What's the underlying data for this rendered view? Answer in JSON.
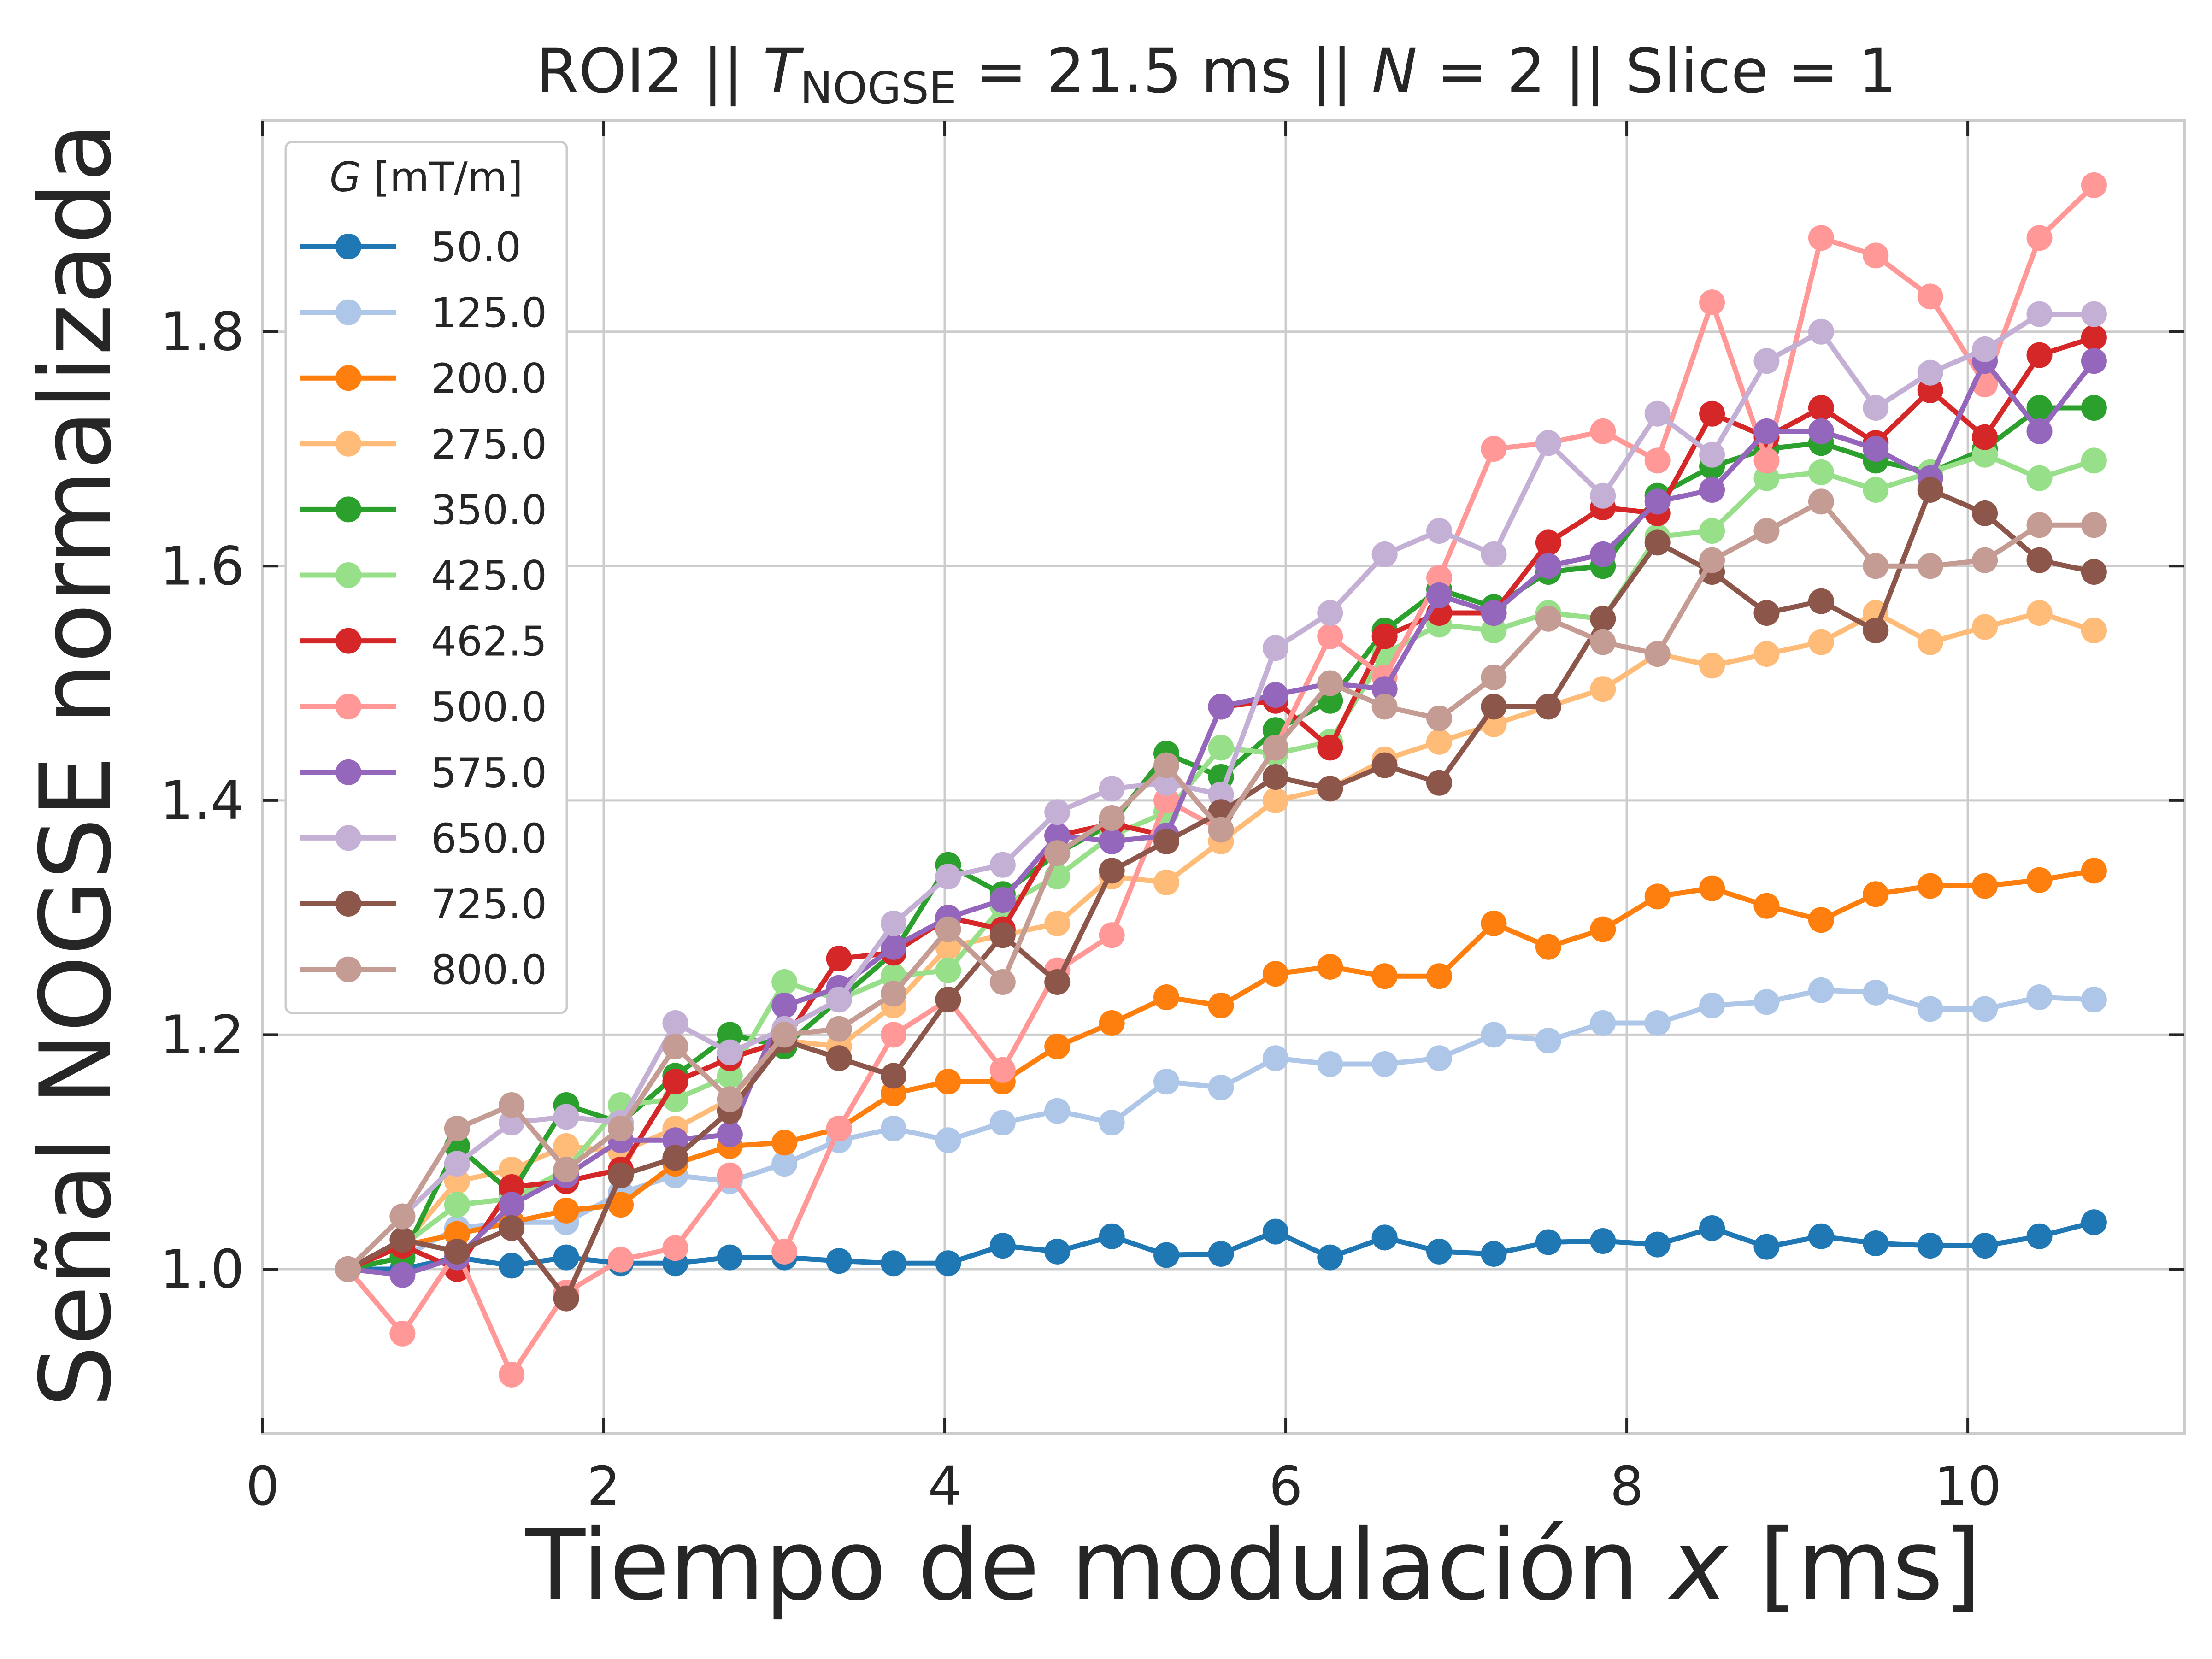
{
  "chart_data": {
    "type": "line",
    "title": {
      "prefix": "ROI2 || ",
      "t_symbol": "T",
      "t_subscript": "NOGSE",
      "after_t": " = 21.5 ms  ||  ",
      "n_symbol": "N",
      "after_n": " = 2 || Slice = 1"
    },
    "xlabel": {
      "text": "Tiempo de modulación ",
      "var": "x",
      "unit": " [ms]"
    },
    "ylabel": "Señal NOGSE normalizada",
    "xlim": [
      0,
      11.27
    ],
    "ylim": [
      0.86,
      1.98
    ],
    "xticks": [
      0,
      2,
      4,
      6,
      8,
      10
    ],
    "yticks": [
      1.0,
      1.2,
      1.4,
      1.6,
      1.8
    ],
    "xtick_labels": [
      "0",
      "2",
      "4",
      "6",
      "8",
      "10"
    ],
    "ytick_labels": [
      "1.0",
      "1.2",
      "1.4",
      "1.6",
      "1.8"
    ],
    "grid": true,
    "legend": {
      "title_var": "G",
      "title_unit": " [mT/m]",
      "position": "upper-left"
    },
    "x": [
      0.5,
      0.82,
      1.14,
      1.46,
      1.78,
      2.1,
      2.42,
      2.74,
      3.06,
      3.38,
      3.7,
      4.02,
      4.34,
      4.66,
      4.98,
      5.3,
      5.62,
      5.94,
      6.26,
      6.58,
      6.9,
      7.22,
      7.54,
      7.86,
      8.18,
      8.5,
      8.82,
      9.14,
      9.46,
      9.78,
      10.1,
      10.42,
      10.74
    ],
    "series": [
      {
        "name": "50.0",
        "color": "#1f77b4",
        "values": [
          1.0,
          1.0,
          1.01,
          1.003,
          1.01,
          1.005,
          1.005,
          1.01,
          1.01,
          1.007,
          1.005,
          1.005,
          1.02,
          1.015,
          1.028,
          1.012,
          1.013,
          1.032,
          1.01,
          1.027,
          1.015,
          1.013,
          1.023,
          1.024,
          1.021,
          1.035,
          1.019,
          1.028,
          1.022,
          1.02,
          1.02,
          1.028,
          1.04
        ]
      },
      {
        "name": "125.0",
        "color": "#aec7e8",
        "values": [
          1.0,
          1.01,
          1.035,
          1.04,
          1.04,
          1.065,
          1.08,
          1.075,
          1.09,
          1.11,
          1.12,
          1.11,
          1.125,
          1.135,
          1.125,
          1.16,
          1.155,
          1.18,
          1.175,
          1.175,
          1.18,
          1.2,
          1.195,
          1.21,
          1.21,
          1.225,
          1.228,
          1.238,
          1.236,
          1.222,
          1.222,
          1.232,
          1.23
        ]
      },
      {
        "name": "200.0",
        "color": "#ff7f0e",
        "values": [
          1.0,
          1.02,
          1.03,
          1.04,
          1.05,
          1.055,
          1.09,
          1.105,
          1.108,
          1.12,
          1.15,
          1.16,
          1.16,
          1.19,
          1.21,
          1.232,
          1.225,
          1.252,
          1.258,
          1.25,
          1.25,
          1.295,
          1.275,
          1.29,
          1.318,
          1.325,
          1.31,
          1.298,
          1.32,
          1.327,
          1.327,
          1.332,
          1.34
        ]
      },
      {
        "name": "275.0",
        "color": "#ffbb78",
        "values": [
          1.0,
          1.02,
          1.075,
          1.085,
          1.105,
          1.1,
          1.12,
          1.145,
          1.195,
          1.19,
          1.225,
          1.275,
          1.285,
          1.295,
          1.335,
          1.33,
          1.365,
          1.4,
          1.41,
          1.435,
          1.45,
          1.465,
          1.48,
          1.495,
          1.525,
          1.515,
          1.525,
          1.535,
          1.56,
          1.535,
          1.548,
          1.56,
          1.545
        ]
      },
      {
        "name": "350.0",
        "color": "#2ca02c",
        "values": [
          1.0,
          1.01,
          1.105,
          1.065,
          1.14,
          1.125,
          1.165,
          1.2,
          1.19,
          1.23,
          1.27,
          1.345,
          1.32,
          1.355,
          1.38,
          1.44,
          1.42,
          1.46,
          1.485,
          1.545,
          1.58,
          1.565,
          1.595,
          1.6,
          1.66,
          1.685,
          1.7,
          1.705,
          1.69,
          1.68,
          1.7,
          1.735,
          1.735
        ]
      },
      {
        "name": "425.0",
        "color": "#98df8a",
        "values": [
          1.0,
          1.02,
          1.055,
          1.06,
          1.085,
          1.14,
          1.145,
          1.165,
          1.245,
          1.23,
          1.25,
          1.255,
          1.31,
          1.335,
          1.37,
          1.39,
          1.445,
          1.44,
          1.45,
          1.525,
          1.55,
          1.545,
          1.56,
          1.555,
          1.625,
          1.63,
          1.675,
          1.68,
          1.665,
          1.68,
          1.695,
          1.675,
          1.69
        ]
      },
      {
        "name": "462.5",
        "color": "#d62728",
        "values": [
          1.0,
          1.02,
          1.0,
          1.07,
          1.075,
          1.085,
          1.16,
          1.18,
          1.195,
          1.265,
          1.27,
          1.3,
          1.29,
          1.37,
          1.38,
          1.37,
          1.48,
          1.485,
          1.445,
          1.54,
          1.56,
          1.56,
          1.62,
          1.65,
          1.645,
          1.73,
          1.71,
          1.735,
          1.705,
          1.75,
          1.71,
          1.78,
          1.795
        ]
      },
      {
        "name": "500.0",
        "color": "#ff9896",
        "values": [
          1.0,
          0.945,
          1.015,
          0.91,
          0.98,
          1.008,
          1.018,
          1.08,
          1.015,
          1.12,
          1.2,
          1.23,
          1.17,
          1.255,
          1.285,
          1.4,
          1.375,
          1.445,
          1.54,
          1.505,
          1.59,
          1.7,
          1.705,
          1.715,
          1.69,
          1.825,
          1.69,
          1.88,
          1.865,
          1.83,
          1.755,
          1.88,
          1.925
        ]
      },
      {
        "name": "575.0",
        "color": "#9467bd",
        "values": [
          1.0,
          0.995,
          1.01,
          1.055,
          1.08,
          1.11,
          1.11,
          1.115,
          1.225,
          1.24,
          1.275,
          1.3,
          1.315,
          1.37,
          1.365,
          1.37,
          1.48,
          1.49,
          1.5,
          1.495,
          1.575,
          1.56,
          1.6,
          1.61,
          1.655,
          1.665,
          1.715,
          1.715,
          1.7,
          1.675,
          1.775,
          1.715,
          1.775
        ]
      },
      {
        "name": "650.0",
        "color": "#c5b0d5",
        "values": [
          1.0,
          1.045,
          1.09,
          1.125,
          1.13,
          1.125,
          1.21,
          1.185,
          1.205,
          1.23,
          1.295,
          1.335,
          1.345,
          1.39,
          1.41,
          1.415,
          1.405,
          1.53,
          1.56,
          1.61,
          1.63,
          1.61,
          1.705,
          1.66,
          1.73,
          1.695,
          1.775,
          1.8,
          1.735,
          1.765,
          1.785,
          1.815,
          1.815
        ]
      },
      {
        "name": "725.0",
        "color": "#8c564b",
        "values": [
          1.0,
          1.025,
          1.015,
          1.035,
          0.975,
          1.08,
          1.095,
          1.135,
          1.195,
          1.18,
          1.165,
          1.23,
          1.285,
          1.245,
          1.34,
          1.365,
          1.39,
          1.42,
          1.41,
          1.43,
          1.415,
          1.48,
          1.48,
          1.555,
          1.62,
          1.595,
          1.56,
          1.57,
          1.545,
          1.665,
          1.645,
          1.605,
          1.595
        ]
      },
      {
        "name": "800.0",
        "color": "#c49c94",
        "values": [
          1.0,
          1.045,
          1.12,
          1.14,
          1.085,
          1.12,
          1.19,
          1.145,
          1.2,
          1.205,
          1.235,
          1.29,
          1.245,
          1.355,
          1.385,
          1.43,
          1.375,
          1.445,
          1.5,
          1.48,
          1.47,
          1.505,
          1.555,
          1.535,
          1.525,
          1.605,
          1.63,
          1.655,
          1.6,
          1.6,
          1.605,
          1.635,
          1.635
        ]
      }
    ]
  }
}
